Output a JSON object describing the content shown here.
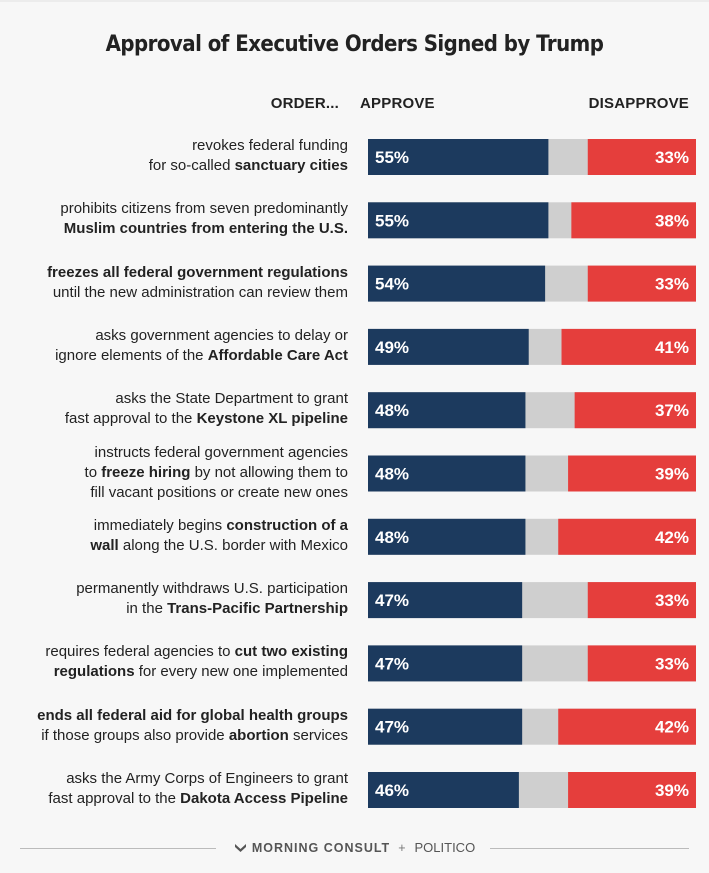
{
  "title": "Approval of Executive Orders Signed by Trump",
  "headers": {
    "order": "ORDER...",
    "approve": "APPROVE",
    "disapprove": "DISAPPROVE"
  },
  "footer": {
    "brand1": "MORNING CONSULT",
    "separator": "+",
    "brand2": "POLITICO"
  },
  "colors": {
    "approve": "#1c3a5e",
    "neutral": "#cfcfcf",
    "disapprove": "#e53e3c"
  },
  "chart_data": {
    "type": "bar",
    "stacked": true,
    "orientation": "horizontal",
    "title": "Approval of Executive Orders Signed by Trump",
    "categories": [
      "revokes federal funding for so-called sanctuary cities",
      "prohibits citizens from seven predominantly Muslim countries from entering the U.S.",
      "freezes all federal government regulations until the new administration can review them",
      "asks government agencies to delay or ignore elements of the Affordable Care Act",
      "asks the State Department to grant fast approval to the Keystone XL pipeline",
      "instructs federal government agencies to freeze hiring by not allowing them to fill vacant positions or create new ones",
      "immediately begins construction of a wall along the U.S. border with Mexico",
      "permanently withdraws U.S. participation in the Trans-Pacific Partnership",
      "requires federal agencies to cut two existing regulations for every new one implemented",
      "ends all federal aid for global health groups if those groups also provide abortion services",
      "asks the Army Corps of Engineers to grant fast approval to the Dakota Access Pipeline"
    ],
    "series": [
      {
        "name": "Approve",
        "values": [
          55,
          55,
          54,
          49,
          48,
          48,
          48,
          47,
          47,
          47,
          46
        ]
      },
      {
        "name": "Disapprove",
        "values": [
          33,
          38,
          33,
          41,
          37,
          39,
          42,
          33,
          33,
          42,
          39
        ]
      }
    ],
    "value_labels": {
      "approve": [
        "55%",
        "55%",
        "54%",
        "49%",
        "48%",
        "48%",
        "48%",
        "47%",
        "47%",
        "47%",
        "46%"
      ],
      "disapprove": [
        "33%",
        "38%",
        "33%",
        "41%",
        "37%",
        "39%",
        "42%",
        "33%",
        "33%",
        "42%",
        "39%"
      ]
    },
    "label_lines": [
      [
        [
          [
            "revokes federal funding",
            false
          ]
        ],
        [
          [
            "for so-called ",
            false
          ],
          [
            "sanctuary cities",
            true
          ]
        ]
      ],
      [
        [
          [
            "prohibits citizens from seven predominantly",
            false
          ]
        ],
        [
          [
            "Muslim countries from entering the U.S.",
            true
          ]
        ]
      ],
      [
        [
          [
            "freezes all federal government regulations",
            true
          ]
        ],
        [
          [
            "until the new administration can review them",
            false
          ]
        ]
      ],
      [
        [
          [
            "asks government agencies to delay or",
            false
          ]
        ],
        [
          [
            "ignore elements of the ",
            false
          ],
          [
            "Affordable Care Act",
            true
          ]
        ]
      ],
      [
        [
          [
            "asks the State Department to grant",
            false
          ]
        ],
        [
          [
            "fast approval to the ",
            false
          ],
          [
            "Keystone XL pipeline",
            true
          ]
        ]
      ],
      [
        [
          [
            "instructs federal government agencies",
            false
          ]
        ],
        [
          [
            "to ",
            false
          ],
          [
            "freeze hiring",
            true
          ],
          [
            " by not allowing them to",
            false
          ]
        ],
        [
          [
            "fill vacant positions or create new ones",
            false
          ]
        ]
      ],
      [
        [
          [
            "immediately begins ",
            false
          ],
          [
            "construction of a",
            true
          ]
        ],
        [
          [
            "wall",
            true
          ],
          [
            " along the U.S. border with Mexico",
            false
          ]
        ]
      ],
      [
        [
          [
            "permanently withdraws U.S. participation",
            false
          ]
        ],
        [
          [
            "in the ",
            false
          ],
          [
            "Trans-Pacific Partnership",
            true
          ]
        ]
      ],
      [
        [
          [
            "requires federal agencies to ",
            false
          ],
          [
            "cut two existing",
            true
          ]
        ],
        [
          [
            "regulations",
            true
          ],
          [
            " for every new one implemented",
            false
          ]
        ]
      ],
      [
        [
          [
            "ends all federal aid for global health groups",
            true
          ]
        ],
        [
          [
            "if those groups also provide ",
            false
          ],
          [
            "abortion",
            true
          ],
          [
            " services",
            false
          ]
        ]
      ],
      [
        [
          [
            "asks the Army Corps of Engineers to grant",
            false
          ]
        ],
        [
          [
            "fast approval to the ",
            false
          ],
          [
            "Dakota Access Pipeline",
            true
          ]
        ]
      ]
    ],
    "xlim": [
      0,
      100
    ],
    "legend": "none"
  }
}
